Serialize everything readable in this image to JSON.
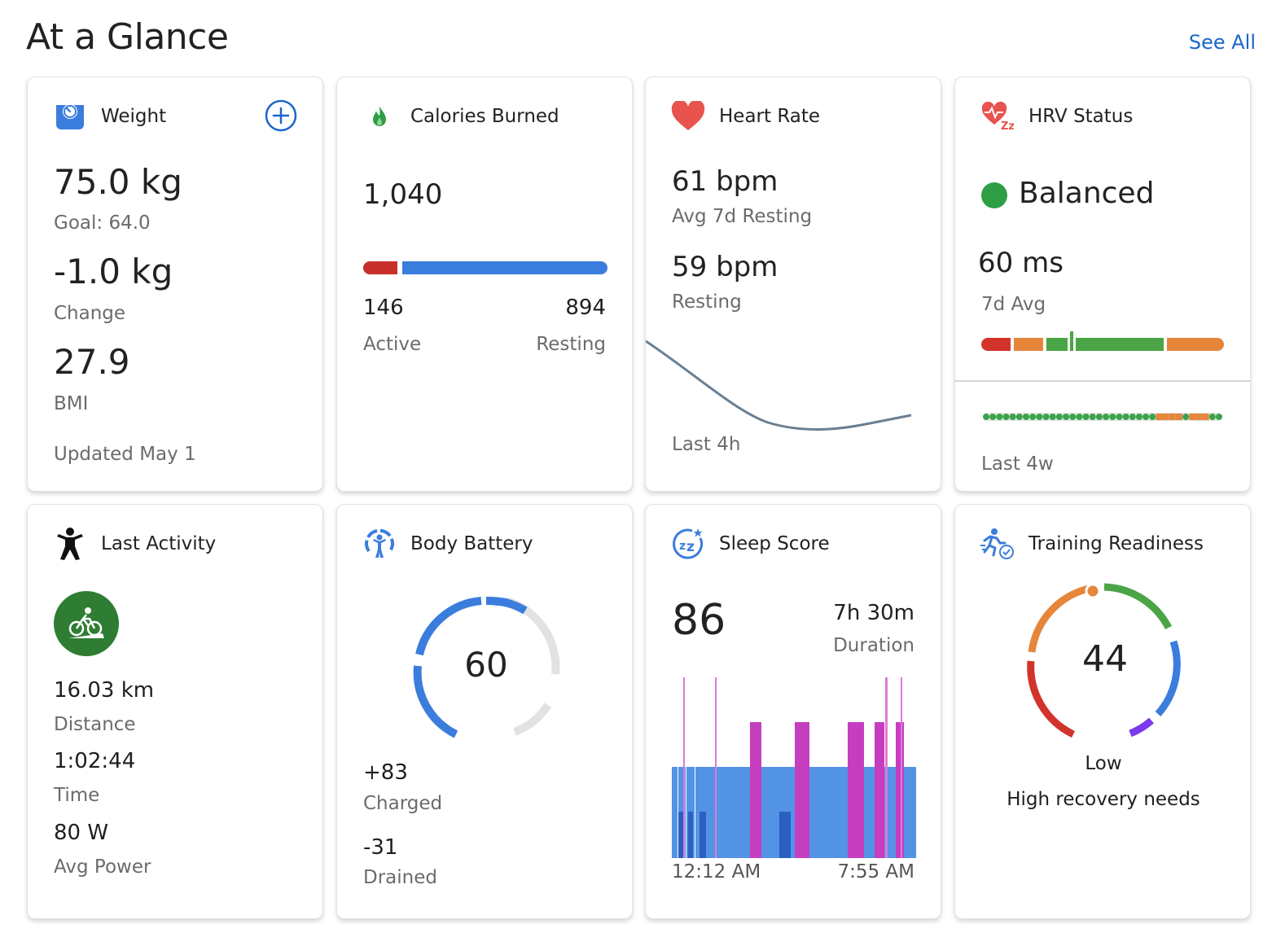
{
  "header": {
    "title": "At a Glance",
    "see_all": "See All"
  },
  "weight": {
    "title": "Weight",
    "weight_value": "75.0 kg",
    "goal": "Goal: 64.0",
    "change_value": "-1.0 kg",
    "change_label": "Change",
    "bmi_value": "27.9",
    "bmi_label": "BMI",
    "updated": "Updated May 1"
  },
  "calories": {
    "title": "Calories Burned",
    "total": "1,040",
    "active_value": "146",
    "active_label": "Active",
    "resting_value": "894",
    "resting_label": "Resting",
    "active_fraction": 0.14,
    "colors": {
      "active": "#c8312b",
      "resting": "#3b7ddd"
    }
  },
  "heart_rate": {
    "title": "Heart Rate",
    "avg_value": "61 bpm",
    "avg_label": "Avg 7d Resting",
    "resting_value": "59 bpm",
    "resting_label": "Resting",
    "period": "Last 4h"
  },
  "hrv": {
    "title": "HRV Status",
    "status": "Balanced",
    "status_color": "#2e9e44",
    "avg_value": "60 ms",
    "avg_label": "7d Avg",
    "period": "Last 4w"
  },
  "last_activity": {
    "title": "Last Activity",
    "activity_icon": "cycling-icon",
    "distance_value": "16.03 km",
    "distance_label": "Distance",
    "time_value": "1:02:44",
    "time_label": "Time",
    "power_value": "80 W",
    "power_label": "Avg Power"
  },
  "body_battery": {
    "title": "Body Battery",
    "level": "60",
    "charged_value": "+83",
    "charged_label": "Charged",
    "drained_value": "-31",
    "drained_label": "Drained"
  },
  "sleep": {
    "title": "Sleep Score",
    "score": "86",
    "duration_value": "7h 30m",
    "duration_label": "Duration",
    "start_time": "12:12 AM",
    "end_time": "7:55 AM",
    "colors": {
      "light": "#5393e6",
      "deep": "#2c5fc2",
      "rem": "#c53ec0",
      "awake": "#e07ad8"
    }
  },
  "training_readiness": {
    "title": "Training Readiness",
    "score": "44",
    "level": "Low",
    "description": "High recovery needs"
  }
}
